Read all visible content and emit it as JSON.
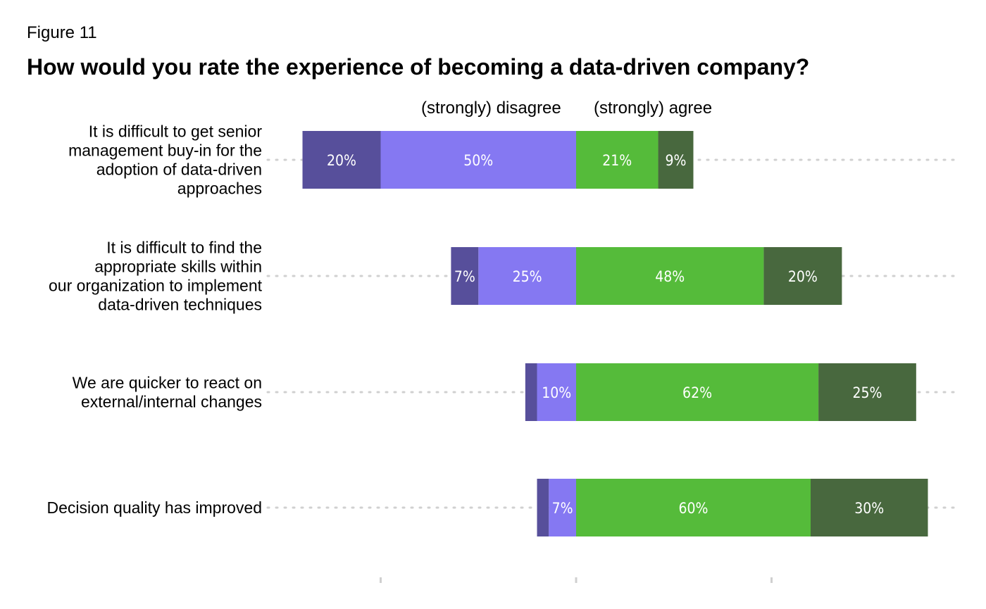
{
  "figure_label": "Figure 11",
  "title": "How would you rate the experience of becoming a data-driven company?",
  "header": {
    "left": "(strongly) disagree",
    "right": "(strongly) agree"
  },
  "colors": {
    "strongly_disagree": "#574f9b",
    "disagree": "#8578f2",
    "agree": "#55bb3a",
    "strongly_agree": "#48683e",
    "gridline": "#d0d0d0"
  },
  "chart_data": {
    "type": "bar",
    "orientation": "horizontal",
    "stacked": "diverging",
    "categories": [
      "It is difficult to get senior management buy-in for the adoption of data-driven approaches",
      "It is difficult to find the appropriate skills within our organization to implement data-driven techniques",
      "We are quicker to react on external/internal changes",
      "Decision quality has improved"
    ],
    "category_lines": [
      [
        "It is difficult to get senior",
        "management buy-in for the",
        "adoption of data-driven",
        "approaches"
      ],
      [
        "It is difficult to find the",
        "appropriate skills within",
        "our organization to implement",
        "data-driven techniques"
      ],
      [
        "We are quicker to react on",
        "external/internal changes"
      ],
      [
        "Decision quality has improved"
      ]
    ],
    "series": [
      {
        "key": "strongly_disagree",
        "side": "left",
        "values": [
          20,
          7,
          3,
          3
        ],
        "labels": [
          "20%",
          "7%",
          "",
          ""
        ]
      },
      {
        "key": "disagree",
        "side": "left",
        "values": [
          50,
          25,
          10,
          7
        ],
        "labels": [
          "50%",
          "25%",
          "10%",
          "7%"
        ]
      },
      {
        "key": "agree",
        "side": "right",
        "values": [
          21,
          48,
          62,
          60
        ],
        "labels": [
          "21%",
          "48%",
          "62%",
          "60%"
        ]
      },
      {
        "key": "strongly_agree",
        "side": "right",
        "values": [
          9,
          20,
          25,
          30
        ],
        "labels": [
          "9%",
          "20%",
          "25%",
          "30%"
        ]
      }
    ],
    "xlim": [
      -70,
      97
    ],
    "x_ticks": [
      -50,
      0,
      50
    ],
    "grid": "dotted-horizontal",
    "legend": "none"
  }
}
